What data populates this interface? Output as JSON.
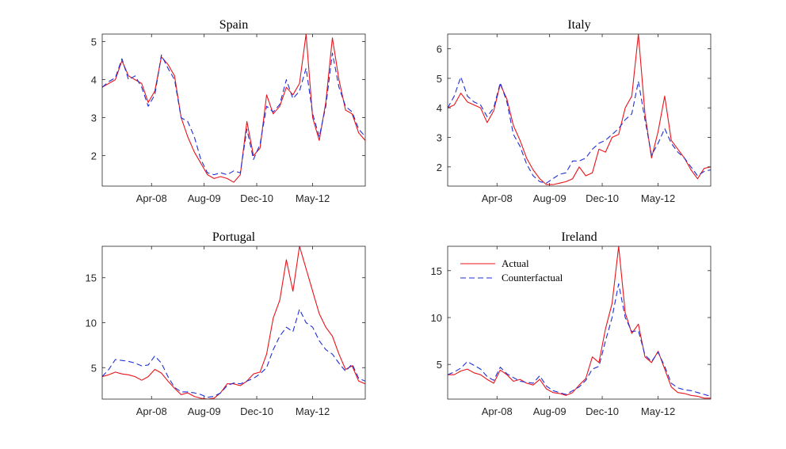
{
  "colors": {
    "actual": "#e8141b",
    "counterfactual": "#1f2fd6",
    "axis": "#262626"
  },
  "chart_data": [
    {
      "type": "line",
      "title": "Spain",
      "x_ticks": [
        "Apr-08",
        "Aug-09",
        "Dec-10",
        "May-12"
      ],
      "x_tick_months": [
        15,
        31,
        47,
        64
      ],
      "x_range": [
        0,
        80
      ],
      "ylim": [
        1.2,
        5.2
      ],
      "y_ticks": [
        2,
        3,
        4,
        5
      ],
      "x_months": [
        0,
        2,
        4,
        6,
        8,
        10,
        12,
        14,
        16,
        18,
        20,
        22,
        24,
        26,
        28,
        30,
        32,
        34,
        36,
        38,
        40,
        42,
        44,
        46,
        48,
        50,
        52,
        54,
        56,
        58,
        60,
        62,
        64,
        66,
        68,
        70,
        72,
        74,
        76,
        78,
        80
      ],
      "series": [
        {
          "name": "Actual",
          "values": [
            3.8,
            3.9,
            4.0,
            4.5,
            4.1,
            4.0,
            3.9,
            3.4,
            3.7,
            4.6,
            4.4,
            4.1,
            3.0,
            2.5,
            2.1,
            1.8,
            1.5,
            1.4,
            1.45,
            1.4,
            1.3,
            1.5,
            2.9,
            2.0,
            2.2,
            3.6,
            3.1,
            3.3,
            3.8,
            3.6,
            3.9,
            5.2,
            3.0,
            2.4,
            3.4,
            5.1,
            4.0,
            3.2,
            3.1,
            2.6,
            2.4
          ]
        },
        {
          "name": "Counterfactual",
          "values": [
            3.8,
            3.95,
            4.05,
            4.55,
            4.0,
            4.1,
            3.8,
            3.3,
            3.6,
            4.65,
            4.3,
            4.0,
            3.0,
            2.9,
            2.5,
            1.9,
            1.55,
            1.5,
            1.55,
            1.5,
            1.6,
            1.55,
            2.7,
            1.9,
            2.3,
            3.3,
            3.15,
            3.35,
            4.0,
            3.5,
            3.7,
            4.3,
            3.1,
            2.5,
            3.3,
            4.7,
            3.8,
            3.3,
            3.15,
            2.7,
            2.5
          ]
        }
      ]
    },
    {
      "type": "line",
      "title": "Italy",
      "x_ticks": [
        "Apr-08",
        "Aug-09",
        "Dec-10",
        "May-12"
      ],
      "x_tick_months": [
        15,
        31,
        47,
        64
      ],
      "x_range": [
        0,
        80
      ],
      "ylim": [
        1.35,
        6.5
      ],
      "y_ticks": [
        2,
        3,
        4,
        5,
        6
      ],
      "x_months": [
        0,
        2,
        4,
        6,
        8,
        10,
        12,
        14,
        16,
        18,
        20,
        22,
        24,
        26,
        28,
        30,
        32,
        34,
        36,
        38,
        40,
        42,
        44,
        46,
        48,
        50,
        52,
        54,
        56,
        58,
        60,
        62,
        64,
        66,
        68,
        70,
        72,
        74,
        76,
        78,
        80
      ],
      "series": [
        {
          "name": "Actual",
          "values": [
            4.0,
            4.1,
            4.5,
            4.2,
            4.1,
            4.0,
            3.5,
            3.9,
            4.8,
            4.3,
            3.4,
            2.9,
            2.3,
            1.9,
            1.6,
            1.4,
            1.4,
            1.45,
            1.5,
            1.6,
            2.0,
            1.7,
            1.8,
            2.6,
            2.5,
            3.0,
            3.1,
            4.0,
            4.4,
            6.5,
            3.8,
            2.3,
            3.2,
            4.4,
            2.9,
            2.6,
            2.3,
            1.9,
            1.6,
            1.95,
            2.0
          ]
        },
        {
          "name": "Counterfactual",
          "values": [
            4.0,
            4.4,
            5.05,
            4.4,
            4.2,
            4.1,
            3.7,
            4.0,
            4.85,
            4.2,
            3.1,
            2.7,
            2.1,
            1.7,
            1.5,
            1.45,
            1.6,
            1.75,
            1.8,
            2.2,
            2.2,
            2.3,
            2.6,
            2.8,
            2.9,
            3.1,
            3.3,
            3.6,
            3.8,
            4.9,
            3.6,
            2.4,
            2.8,
            3.3,
            2.8,
            2.5,
            2.3,
            2.0,
            1.7,
            1.85,
            1.9
          ]
        }
      ]
    },
    {
      "type": "line",
      "title": "Portugal",
      "x_ticks": [
        "Apr-08",
        "Aug-09",
        "Dec-10",
        "May-12"
      ],
      "x_tick_months": [
        15,
        31,
        47,
        64
      ],
      "x_range": [
        0,
        80
      ],
      "ylim": [
        1.5,
        18.5
      ],
      "y_ticks": [
        5,
        10,
        15
      ],
      "x_months": [
        0,
        2,
        4,
        6,
        8,
        10,
        12,
        14,
        16,
        18,
        20,
        22,
        24,
        26,
        28,
        30,
        32,
        34,
        36,
        38,
        40,
        42,
        44,
        46,
        48,
        50,
        52,
        54,
        56,
        58,
        60,
        62,
        64,
        66,
        68,
        70,
        72,
        74,
        76,
        78,
        80
      ],
      "series": [
        {
          "name": "Actual",
          "values": [
            4.0,
            4.2,
            4.5,
            4.3,
            4.2,
            4.0,
            3.6,
            4.0,
            4.8,
            4.4,
            3.5,
            2.7,
            2.0,
            2.2,
            1.8,
            1.6,
            1.5,
            1.6,
            2.2,
            3.2,
            3.2,
            3.0,
            3.5,
            4.3,
            4.5,
            6.5,
            10.5,
            12.5,
            17.0,
            13.5,
            18.5,
            16.0,
            13.5,
            11.0,
            9.5,
            8.5,
            6.5,
            4.8,
            5.2,
            3.5,
            3.2
          ]
        },
        {
          "name": "Counterfactual",
          "values": [
            4.0,
            4.8,
            5.9,
            5.8,
            5.7,
            5.5,
            5.2,
            5.3,
            6.3,
            5.5,
            4.0,
            2.8,
            2.3,
            2.3,
            2.2,
            2.0,
            1.7,
            1.8,
            2.2,
            3.0,
            3.3,
            3.2,
            3.5,
            3.8,
            4.3,
            5.0,
            7.0,
            8.5,
            9.5,
            9.0,
            11.5,
            10.0,
            9.5,
            8.0,
            7.0,
            6.5,
            5.5,
            4.6,
            5.4,
            3.8,
            3.5
          ]
        }
      ]
    },
    {
      "type": "line",
      "title": "Ireland",
      "x_ticks": [
        "Apr-08",
        "Aug-09",
        "Dec-10",
        "May-12"
      ],
      "x_tick_months": [
        15,
        31,
        47,
        64
      ],
      "x_range": [
        0,
        80
      ],
      "ylim": [
        1.3,
        17.6
      ],
      "y_ticks": [
        5,
        10,
        15
      ],
      "x_months": [
        0,
        2,
        4,
        6,
        8,
        10,
        12,
        14,
        16,
        18,
        20,
        22,
        24,
        26,
        28,
        30,
        32,
        34,
        36,
        38,
        40,
        42,
        44,
        46,
        48,
        50,
        52,
        54,
        56,
        58,
        60,
        62,
        64,
        66,
        68,
        70,
        72,
        74,
        76,
        78,
        80
      ],
      "series": [
        {
          "name": "Actual",
          "values": [
            3.9,
            3.9,
            4.3,
            4.5,
            4.1,
            3.9,
            3.4,
            3.0,
            4.4,
            3.9,
            3.2,
            3.4,
            3.0,
            2.8,
            3.4,
            2.4,
            2.0,
            1.9,
            1.7,
            2.0,
            2.8,
            3.5,
            5.8,
            5.2,
            8.8,
            11.5,
            17.6,
            10.5,
            8.3,
            9.3,
            5.8,
            5.2,
            6.4,
            4.5,
            2.6,
            2.0,
            1.9,
            1.7,
            1.6,
            1.4,
            1.4
          ]
        },
        {
          "name": "Counterfactual",
          "values": [
            3.9,
            4.2,
            4.6,
            5.3,
            4.9,
            4.5,
            3.7,
            3.3,
            4.7,
            4.0,
            3.6,
            3.2,
            3.1,
            3.0,
            3.8,
            2.7,
            2.2,
            2.0,
            1.8,
            2.2,
            2.6,
            3.3,
            4.5,
            4.8,
            7.5,
            10.0,
            13.6,
            10.0,
            8.5,
            8.6,
            6.0,
            5.3,
            6.3,
            4.8,
            3.0,
            2.5,
            2.3,
            2.2,
            2.0,
            1.8,
            1.6
          ]
        }
      ]
    }
  ],
  "legend": {
    "items": [
      "Actual",
      "Counterfactual"
    ],
    "location": "top-left of Ireland panel"
  }
}
